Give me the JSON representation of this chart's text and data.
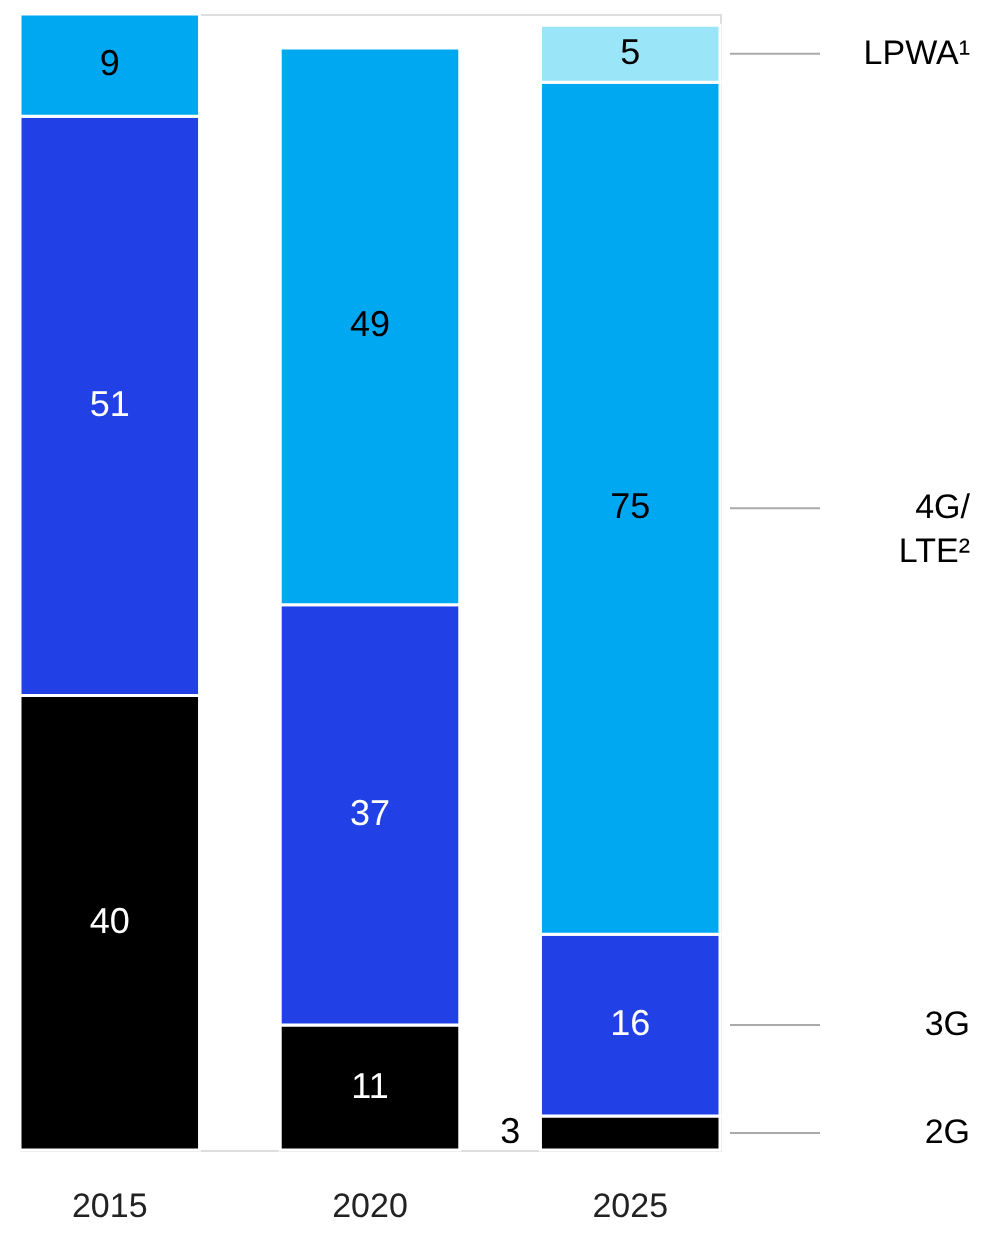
{
  "chart_data": {
    "type": "bar",
    "stacked": true,
    "categories": [
      "2015",
      "2020",
      "2025"
    ],
    "series": [
      {
        "name": "2G",
        "color": "#000000",
        "values": [
          40,
          11,
          3
        ]
      },
      {
        "name": "3G",
        "color": "#2141e6",
        "values": [
          51,
          37,
          16
        ]
      },
      {
        "name": "4G/LTE²",
        "color": "#00a8f2",
        "values": [
          9,
          49,
          75
        ]
      },
      {
        "name": "LPWA¹",
        "color": "#9ae5f8",
        "values": [
          null,
          null,
          5
        ]
      }
    ],
    "data_labels": true,
    "legend": "right",
    "tick_labels": "x",
    "grid": false
  }
}
